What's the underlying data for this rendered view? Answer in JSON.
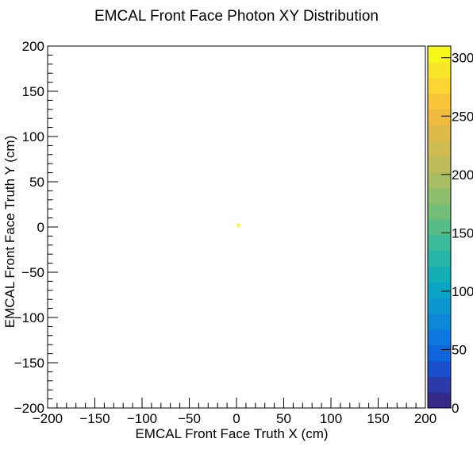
{
  "chart_data": {
    "type": "heatmap",
    "title": "EMCAL Front Face Photon XY Distribution",
    "xlabel": "EMCAL Front Face Truth X (cm)",
    "ylabel": "EMCAL Front Face Truth Y (cm)",
    "xlim": [
      -200,
      200
    ],
    "ylim": [
      -200,
      200
    ],
    "x_ticks": [
      -200,
      -150,
      -100,
      -50,
      0,
      50,
      100,
      150,
      200
    ],
    "y_ticks": [
      -200,
      -150,
      -100,
      -50,
      0,
      50,
      100,
      150,
      200
    ],
    "x_tick_labels": [
      "−200",
      "−150",
      "−100",
      "−50",
      "0",
      "50",
      "100",
      "150",
      "200"
    ],
    "y_tick_labels": [
      "−200",
      "−150",
      "−100",
      "−50",
      "0",
      "50",
      "100",
      "150",
      "200"
    ],
    "colorbar": {
      "min": 0,
      "max": 310,
      "ticks": [
        0,
        50,
        100,
        150,
        200,
        250,
        300
      ],
      "tick_labels": [
        "0",
        "50",
        "100",
        "150",
        "200",
        "250",
        "300"
      ]
    },
    "cells": [
      {
        "x": 2,
        "y": 2,
        "value": 300
      }
    ],
    "grid": false,
    "colormap": [
      "#352a87",
      "#2c3ba8",
      "#1c4fcc",
      "#1064de",
      "#0f77df",
      "#0d88d8",
      "#0e97cf",
      "#0aa5c3",
      "#14aeb5",
      "#26b5a7",
      "#3bb998",
      "#56bd88",
      "#73bf78",
      "#8dbe6b",
      "#a6bd61",
      "#bcbc5a",
      "#cfbb52",
      "#dfb94a",
      "#efbb3f",
      "#f9c53a",
      "#fbd632",
      "#f8e62b",
      "#f7f71c"
    ]
  }
}
